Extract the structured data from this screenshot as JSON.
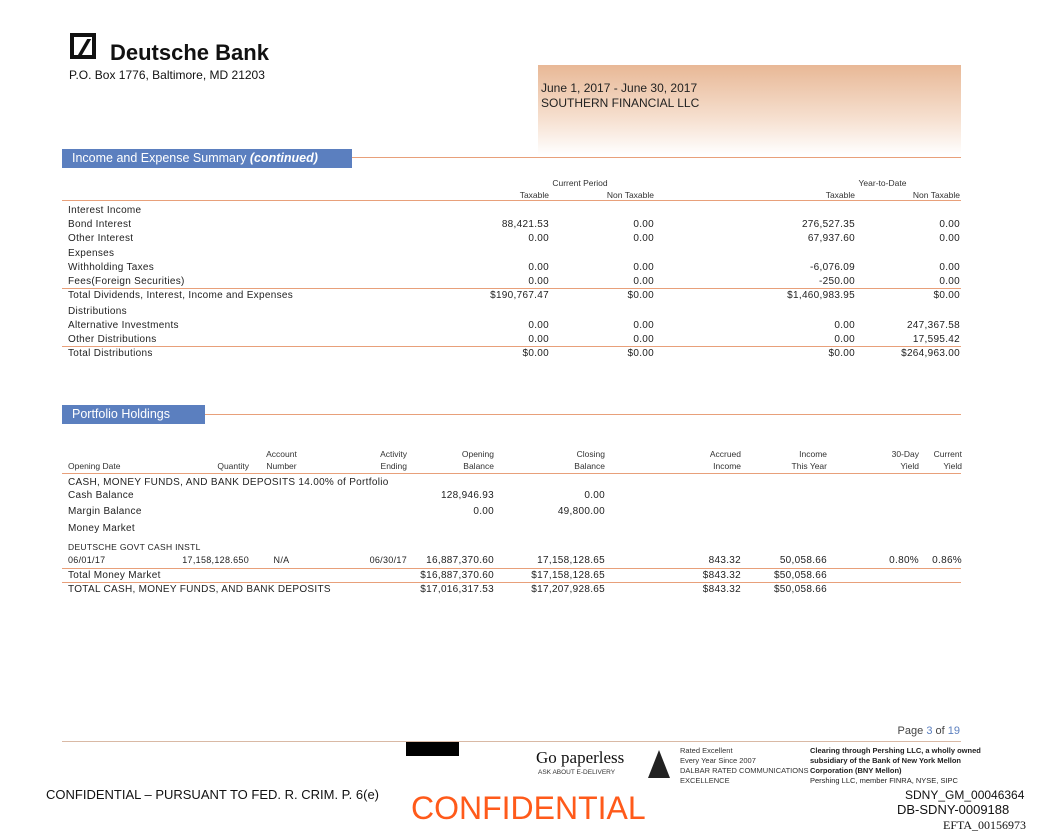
{
  "header": {
    "bank_name": "Deutsche Bank",
    "address": "P.O. Box 1776, Baltimore, MD 21203",
    "period": "June 1, 2017 - June 30, 2017",
    "client": "SOUTHERN FINANCIAL LLC"
  },
  "income": {
    "title": "Income and Expense Summary",
    "title_suffix": "(continued)",
    "group_headers": [
      "Current Period",
      "Year-to-Date"
    ],
    "columns": [
      "Taxable",
      "Non Taxable",
      "Taxable",
      "Non Taxable"
    ],
    "rows": [
      {
        "label": "Interest Income",
        "values": []
      },
      {
        "label": "Bond Interest",
        "values": [
          "88,421.53",
          "0.00",
          "276,527.35",
          "0.00"
        ]
      },
      {
        "label": "Other Interest",
        "values": [
          "0.00",
          "0.00",
          "67,937.60",
          "0.00"
        ]
      },
      {
        "label": "Expenses",
        "values": []
      },
      {
        "label": "Withholding Taxes",
        "values": [
          "0.00",
          "0.00",
          "-6,076.09",
          "0.00"
        ]
      },
      {
        "label": "Fees(Foreign Securities)",
        "values": [
          "0.00",
          "0.00",
          "-250.00",
          "0.00"
        ]
      },
      {
        "label": "Total Dividends, Interest, Income and Expenses",
        "values": [
          "$190,767.47",
          "$0.00",
          "$1,460,983.95",
          "$0.00"
        ]
      },
      {
        "label": "Distributions",
        "values": []
      },
      {
        "label": "Alternative Investments",
        "values": [
          "0.00",
          "0.00",
          "0.00",
          "247,367.58"
        ]
      },
      {
        "label": "Other Distributions",
        "values": [
          "0.00",
          "0.00",
          "0.00",
          "17,595.42"
        ]
      },
      {
        "label": "Total Distributions",
        "values": [
          "$0.00",
          "$0.00",
          "$0.00",
          "$264,963.00"
        ]
      }
    ]
  },
  "portfolio": {
    "title": "Portfolio Holdings",
    "columns": [
      [
        "",
        "Opening Date"
      ],
      [
        "",
        "Quantity"
      ],
      [
        "Account",
        "Number"
      ],
      [
        "Activity",
        "Ending"
      ],
      [
        "Opening",
        "Balance"
      ],
      [
        "Closing",
        "Balance"
      ],
      [
        "Accrued",
        "Income"
      ],
      [
        "Income",
        "This Year"
      ],
      [
        "30-Day",
        "Yield"
      ],
      [
        "Current",
        "Yield"
      ]
    ],
    "rows": [
      {
        "label": "CASH, MONEY FUNDS, AND BANK DEPOSITS 14.00% of Portfolio",
        "values": []
      },
      {
        "label": "Cash Balance",
        "values": [
          "",
          "",
          "",
          "",
          "128,946.93",
          "0.00",
          "",
          "",
          "",
          ""
        ]
      },
      {
        "label": "Margin Balance",
        "values": [
          "",
          "",
          "",
          "",
          "0.00",
          "49,800.00",
          "",
          "",
          "",
          ""
        ]
      },
      {
        "label": "Money Market",
        "values": []
      },
      {
        "label": "DEUTSCHE GOVT CASH INSTL",
        "values": [],
        "small": true
      },
      {
        "label": "",
        "values": [
          "06/01/17",
          "17,158,128.650",
          "N/A",
          "06/30/17",
          "16,887,370.60",
          "17,158,128.65",
          "843.32",
          "50,058.66",
          "0.80%",
          "0.86%"
        ],
        "small": true
      },
      {
        "label": "Total Money Market",
        "values": [
          "",
          "",
          "",
          "",
          "$16,887,370.60",
          "$17,158,128.65",
          "$843.32",
          "$50,058.66",
          "",
          ""
        ]
      },
      {
        "label": "TOTAL CASH, MONEY FUNDS, AND BANK DEPOSITS",
        "values": [
          "",
          "",
          "",
          "",
          "$17,016,317.53",
          "$17,207,928.65",
          "$843.32",
          "$50,058.66",
          "",
          ""
        ]
      }
    ]
  },
  "footer": {
    "page_prefix": "Page",
    "page": "3",
    "page_of": "of",
    "page_total": "19",
    "paperless": "Go paperless",
    "paperless_sub": "ASK ABOUT E-DELIVERY",
    "dalbar": [
      "Rated Excellent",
      "Every Year Since 2007",
      "DALBAR RATED COMMUNICATIONS",
      "EXCELLENCE"
    ],
    "pershing": [
      "Clearing through Pershing LLC, a wholly owned",
      "subsidiary of the Bank of New York Mellon",
      "Corporation (BNY Mellon)",
      "Pershing LLC, member FINRA, NYSE, SIPC"
    ],
    "confidential_notice": "CONFIDENTIAL – PURSUANT TO FED. R. CRIM. P. 6(e)",
    "confidential_stamp": "CONFIDENTIAL",
    "bates": [
      "SDNY_GM_00046364",
      "DB-SDNY-0009188",
      "EFTA_00156973"
    ]
  },
  "colors": {
    "section": "#5b7fbf",
    "rule": "#e8a07a",
    "stamp": "#ff5a1a",
    "page_num": "#5b7fbf"
  }
}
